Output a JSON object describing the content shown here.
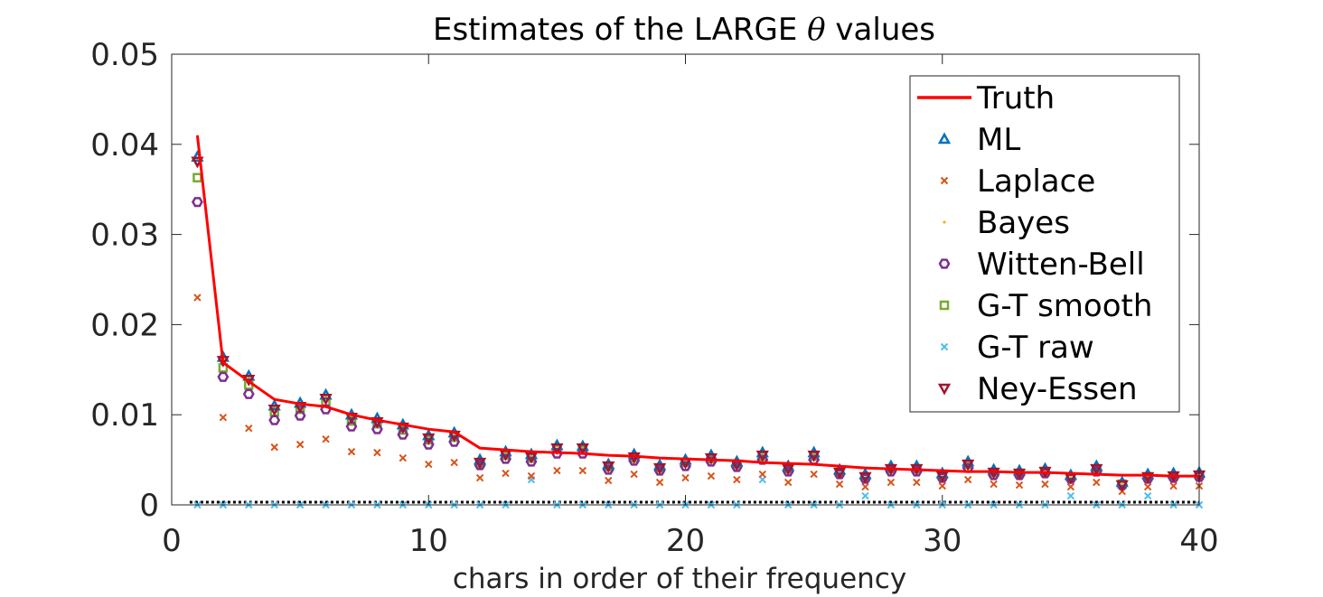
{
  "chart_data": {
    "type": "scatter",
    "title_prefix": "Estimates of the LARGE ",
    "title_symbol": "θ",
    "title_suffix": " values",
    "xlabel": "chars in order of their frequency",
    "ylabel": "",
    "xlim": [
      0,
      40
    ],
    "ylim": [
      0,
      0.05
    ],
    "xticks": [
      0,
      10,
      20,
      30,
      40
    ],
    "xtick_labels": [
      "0",
      "10",
      "20",
      "30",
      "40"
    ],
    "yticks": [
      0,
      0.01,
      0.02,
      0.03,
      0.04,
      0.05
    ],
    "ytick_labels": [
      "0",
      "0.01",
      "0.02",
      "0.03",
      "0.04",
      "0.05"
    ],
    "grid": false,
    "legend_position": "top-right",
    "x": [
      1,
      2,
      3,
      4,
      5,
      6,
      7,
      8,
      9,
      10,
      11,
      12,
      13,
      14,
      15,
      16,
      17,
      18,
      19,
      20,
      21,
      22,
      23,
      24,
      25,
      26,
      27,
      28,
      29,
      30,
      31,
      32,
      33,
      34,
      35,
      36,
      37,
      38,
      39,
      40
    ],
    "series": [
      {
        "name": "Truth",
        "marker": "line",
        "color": "#ff0000",
        "values": [
          0.041,
          0.0158,
          0.0137,
          0.0117,
          0.0112,
          0.0109,
          0.01,
          0.0094,
          0.0089,
          0.0084,
          0.0081,
          0.0063,
          0.0061,
          0.0059,
          0.0058,
          0.0057,
          0.0055,
          0.0054,
          0.0052,
          0.0051,
          0.005,
          0.0049,
          0.0047,
          0.0046,
          0.0045,
          0.0043,
          0.0041,
          0.004,
          0.0039,
          0.0038,
          0.0037,
          0.0037,
          0.0036,
          0.0036,
          0.0035,
          0.0034,
          0.0033,
          0.0033,
          0.0032,
          0.0032
        ]
      },
      {
        "name": "ML",
        "marker": "triangle-up",
        "color": "#0072bd",
        "values": [
          0.0386,
          0.0164,
          0.0143,
          0.011,
          0.0113,
          0.0122,
          0.01,
          0.0096,
          0.0089,
          0.0077,
          0.008,
          0.005,
          0.0059,
          0.0056,
          0.0066,
          0.0065,
          0.0045,
          0.0056,
          0.0044,
          0.005,
          0.0055,
          0.0048,
          0.0058,
          0.0043,
          0.0058,
          0.0039,
          0.0034,
          0.0043,
          0.0043,
          0.0035,
          0.0048,
          0.0039,
          0.0038,
          0.004,
          0.0033,
          0.0043,
          0.0025,
          0.0034,
          0.0035,
          0.0036
        ]
      },
      {
        "name": "Laplace",
        "marker": "x",
        "color": "#d95319",
        "values": [
          0.023,
          0.0097,
          0.0085,
          0.0064,
          0.0067,
          0.0073,
          0.0059,
          0.0058,
          0.0052,
          0.0045,
          0.0047,
          0.003,
          0.0035,
          0.0032,
          0.0038,
          0.0038,
          0.0027,
          0.0034,
          0.0025,
          0.003,
          0.0032,
          0.0028,
          0.0034,
          0.0025,
          0.0034,
          0.0023,
          0.002,
          0.0025,
          0.0025,
          0.0021,
          0.0028,
          0.0023,
          0.0022,
          0.0023,
          0.002,
          0.0025,
          0.0015,
          0.002,
          0.0021,
          0.0021
        ]
      },
      {
        "name": "Bayes",
        "marker": "dot",
        "color": "#edb120",
        "values": [
          0.0382,
          0.0162,
          0.0141,
          0.0109,
          0.0112,
          0.012,
          0.0099,
          0.0095,
          0.0088,
          0.0076,
          0.0079,
          0.0049,
          0.0058,
          0.0055,
          0.0065,
          0.0064,
          0.0044,
          0.0055,
          0.0043,
          0.0049,
          0.0054,
          0.0047,
          0.0057,
          0.0042,
          0.0057,
          0.0038,
          0.0033,
          0.0042,
          0.0042,
          0.0034,
          0.0047,
          0.0038,
          0.0037,
          0.0039,
          0.0032,
          0.0042,
          0.0024,
          0.0033,
          0.0034,
          0.0035
        ]
      },
      {
        "name": "Witten-Bell",
        "marker": "hexagon",
        "color": "#7e2f8e",
        "values": [
          0.0336,
          0.0142,
          0.0123,
          0.0094,
          0.0099,
          0.0106,
          0.0087,
          0.0084,
          0.0078,
          0.0067,
          0.007,
          0.0044,
          0.0051,
          0.0048,
          0.0057,
          0.0057,
          0.0039,
          0.0049,
          0.0038,
          0.0043,
          0.0048,
          0.0042,
          0.005,
          0.0037,
          0.005,
          0.0034,
          0.0029,
          0.0037,
          0.0037,
          0.003,
          0.0041,
          0.0033,
          0.0033,
          0.0035,
          0.0029,
          0.0037,
          0.0022,
          0.0029,
          0.003,
          0.0031
        ]
      },
      {
        "name": "G-T smooth",
        "marker": "square",
        "color": "#77ac30",
        "values": [
          0.0363,
          0.0152,
          0.0133,
          0.0103,
          0.0106,
          0.0114,
          0.0093,
          0.009,
          0.0083,
          0.0072,
          0.0075,
          0.0046,
          0.0055,
          0.0052,
          0.0062,
          0.0061,
          0.0042,
          0.0052,
          0.0041,
          0.0047,
          0.0051,
          0.0045,
          0.0054,
          0.004,
          0.0054,
          0.0036,
          0.0031,
          0.004,
          0.004,
          0.0032,
          0.0045,
          0.0036,
          0.0035,
          0.0037,
          0.0031,
          0.004,
          0.0023,
          0.0031,
          0.0032,
          0.0033
        ]
      },
      {
        "name": "G-T raw",
        "marker": "x",
        "color": "#4dbeee",
        "values": [
          0,
          0,
          0,
          0,
          0,
          0,
          0,
          0,
          0,
          0,
          0,
          0,
          0,
          0.0028,
          0,
          0,
          0,
          0,
          0,
          0,
          0,
          0,
          0.0028,
          0,
          0,
          0,
          0.001,
          0,
          0,
          0,
          0,
          0,
          0,
          0,
          0.001,
          0,
          0,
          0.001,
          0,
          0
        ]
      },
      {
        "name": "Ney-Essen",
        "marker": "triangle-down",
        "color": "#a2142f",
        "values": [
          0.0381,
          0.016,
          0.0139,
          0.0106,
          0.0109,
          0.0118,
          0.0097,
          0.0092,
          0.0086,
          0.0074,
          0.0077,
          0.0047,
          0.0056,
          0.0053,
          0.0063,
          0.0063,
          0.0043,
          0.0053,
          0.0041,
          0.0047,
          0.0052,
          0.0045,
          0.0055,
          0.004,
          0.0055,
          0.0036,
          0.0031,
          0.004,
          0.004,
          0.0032,
          0.0045,
          0.0036,
          0.0035,
          0.0037,
          0.003,
          0.004,
          0.0022,
          0.0031,
          0.0032,
          0.0033
        ]
      }
    ],
    "reference_line": {
      "y": 0,
      "style": "dotted",
      "color": "#000000"
    }
  }
}
